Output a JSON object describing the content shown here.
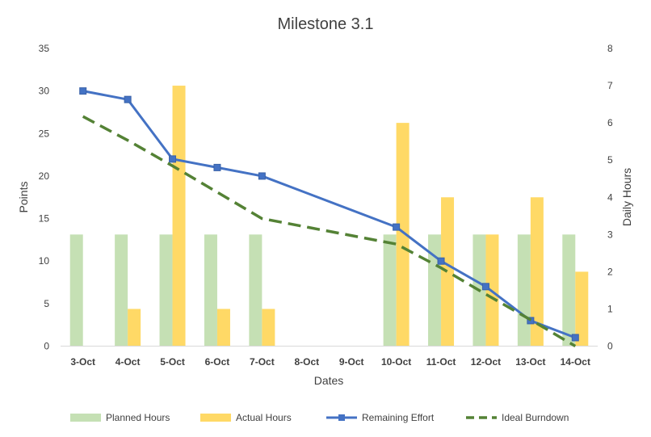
{
  "chart_data": {
    "title": "Milestone 3.1",
    "xlabel": "Dates",
    "ylabel_left": "Points",
    "ylabel_right": "Daily Hours",
    "ylim_left": [
      0,
      35
    ],
    "ylim_right": [
      0,
      8
    ],
    "yticks_left": [
      0,
      5,
      10,
      15,
      20,
      25,
      30,
      35
    ],
    "yticks_right": [
      0,
      1,
      2,
      3,
      4,
      5,
      6,
      7,
      8
    ],
    "categories": [
      "3-Oct",
      "4-Oct",
      "5-Oct",
      "6-Oct",
      "7-Oct",
      "8-Oct",
      "9-Oct",
      "10-Oct",
      "11-Oct",
      "12-Oct",
      "13-Oct",
      "14-Oct"
    ],
    "legend_position": "bottom",
    "grid": false,
    "series": [
      {
        "name": "Planned Hours",
        "type": "bar",
        "axis": "right",
        "color": "#c5e0b4",
        "values": [
          3,
          3,
          3,
          3,
          3,
          null,
          null,
          3,
          3,
          3,
          3,
          3
        ]
      },
      {
        "name": "Actual Hours",
        "type": "bar",
        "axis": "right",
        "color": "#ffd966",
        "values": [
          null,
          1,
          7,
          1,
          1,
          null,
          null,
          6,
          4,
          3,
          4,
          2
        ]
      },
      {
        "name": "Remaining Effort",
        "type": "line",
        "axis": "left",
        "color": "#4472c4",
        "marker": "square",
        "values": [
          30,
          29,
          22,
          21,
          20,
          null,
          null,
          14,
          10,
          7,
          3,
          1
        ]
      },
      {
        "name": "Ideal Burndown",
        "type": "line",
        "axis": "left",
        "color": "#548235",
        "dash": true,
        "values": [
          27,
          24.2,
          21.2,
          18.1,
          15,
          null,
          null,
          12,
          9.2,
          6.1,
          3.1,
          0
        ]
      }
    ]
  }
}
